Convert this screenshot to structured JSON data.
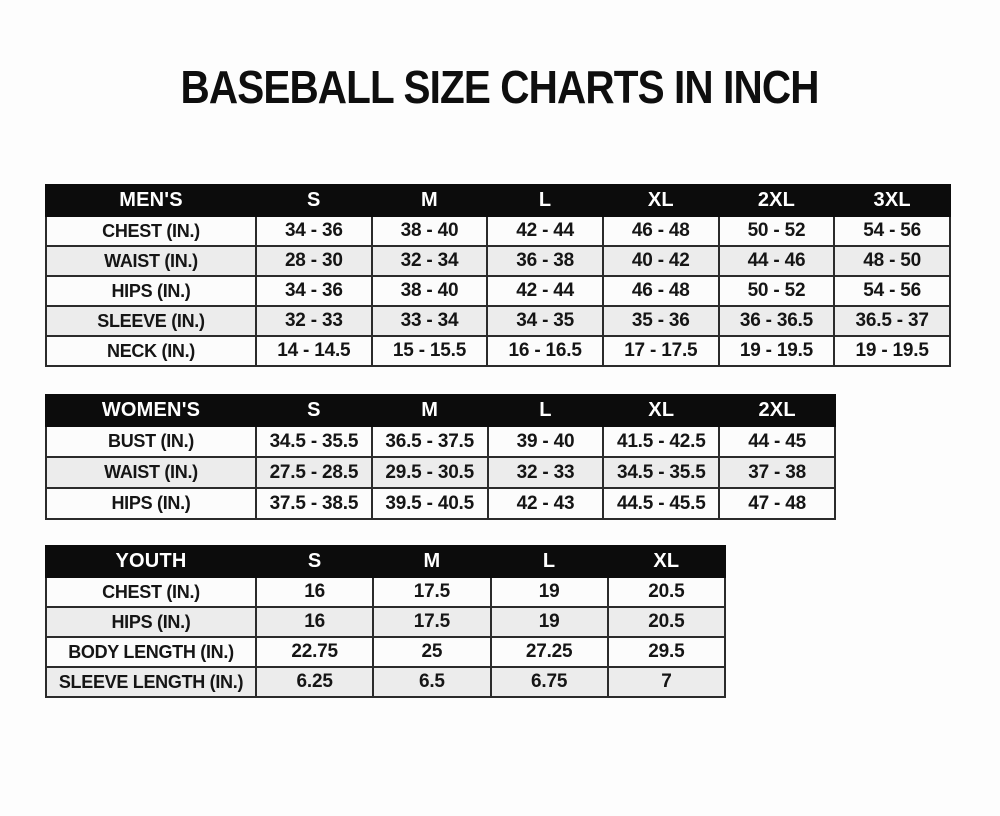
{
  "page": {
    "title": "BASEBALL SIZE CHARTS IN INCH"
  },
  "colors": {
    "background": "#fdfdfd",
    "table_header_bg": "#0c0c0c",
    "table_header_text": "#ffffff",
    "row_bg": "#fcfcfc",
    "row_alt_bg": "#ececec",
    "border": "#2b2b2b",
    "text": "#151515"
  },
  "tables": [
    {
      "id": "mens",
      "header": [
        "MEN'S",
        "S",
        "M",
        "L",
        "XL",
        "2XL",
        "3XL"
      ],
      "rows": [
        [
          "CHEST (IN.)",
          "34 - 36",
          "38 - 40",
          "42 - 44",
          "46 - 48",
          "50 - 52",
          "54 - 56"
        ],
        [
          "WAIST (IN.)",
          "28 - 30",
          "32 - 34",
          "36 - 38",
          "40 - 42",
          "44 - 46",
          "48 - 50"
        ],
        [
          "HIPS (IN.)",
          "34 - 36",
          "38 - 40",
          "42 - 44",
          "46 - 48",
          "50 - 52",
          "54 - 56"
        ],
        [
          "SLEEVE (IN.)",
          "32 - 33",
          "33 - 34",
          "34 - 35",
          "35 - 36",
          "36 - 36.5",
          "36.5 - 37"
        ],
        [
          "NECK (IN.)",
          "14 - 14.5",
          "15 - 15.5",
          "16 - 16.5",
          "17 - 17.5",
          "19 - 19.5",
          "19 - 19.5"
        ]
      ]
    },
    {
      "id": "womens",
      "header": [
        "WOMEN'S",
        "S",
        "M",
        "L",
        "XL",
        "2XL"
      ],
      "rows": [
        [
          "BUST (IN.)",
          "34.5 - 35.5",
          "36.5 - 37.5",
          "39 - 40",
          "41.5 - 42.5",
          "44 - 45"
        ],
        [
          "WAIST (IN.)",
          "27.5 - 28.5",
          "29.5 - 30.5",
          "32 - 33",
          "34.5 - 35.5",
          "37 - 38"
        ],
        [
          "HIPS (IN.)",
          "37.5 - 38.5",
          "39.5 - 40.5",
          "42 - 43",
          "44.5 - 45.5",
          "47 - 48"
        ]
      ]
    },
    {
      "id": "youth",
      "header": [
        "YOUTH",
        "S",
        "M",
        "L",
        "XL"
      ],
      "rows": [
        [
          "CHEST (IN.)",
          "16",
          "17.5",
          "19",
          "20.5"
        ],
        [
          "HIPS (IN.)",
          "16",
          "17.5",
          "19",
          "20.5"
        ],
        [
          "BODY LENGTH (IN.)",
          "22.75",
          "25",
          "27.25",
          "29.5"
        ],
        [
          "SLEEVE LENGTH (IN.)",
          "6.25",
          "6.5",
          "6.75",
          "7"
        ]
      ]
    }
  ]
}
